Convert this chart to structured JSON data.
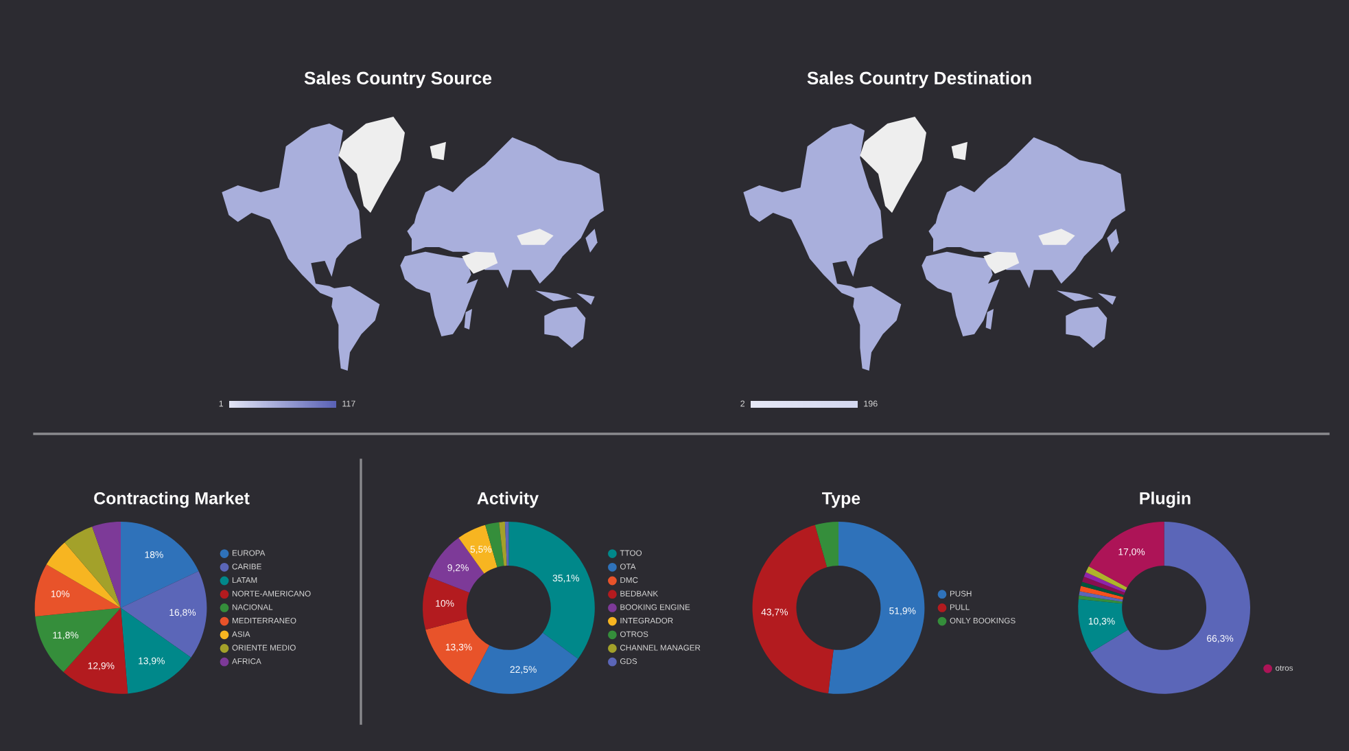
{
  "chart_data": [
    {
      "type": "other",
      "title": "Sales Country Source",
      "annotations": [
        "1",
        "117"
      ],
      "colors": [
        "#e4e6f6",
        "#5a62b6"
      ]
    },
    {
      "type": "other",
      "title": "Sales Country Destination",
      "annotations": [
        "2",
        "196"
      ],
      "colors": [
        "#e6e8f6",
        "#d4d8f0"
      ]
    },
    {
      "type": "pie",
      "title": "Contracting Market",
      "categories": [
        "EUROPA",
        "CARIBE",
        "LATAM",
        "NORTE-AMERICANO",
        "NACIONAL",
        "MEDITERRANEO",
        "ASIA",
        "ORIENTE MEDIO",
        "AFRICA"
      ],
      "values": [
        18,
        16.8,
        13.9,
        12.9,
        11.8,
        10,
        5.3,
        5.9,
        5.4
      ],
      "colors": [
        "#2f72ba",
        "#5b66b8",
        "#00888a",
        "#b31b1f",
        "#358e3b",
        "#e8532a",
        "#f7b521",
        "#a3a12a",
        "#7d3a98"
      ],
      "value_labels": [
        "18%",
        "16,8%",
        "13,9%",
        "12,9%",
        "11,8%",
        "10%",
        null,
        null,
        null
      ],
      "legend": "right"
    },
    {
      "type": "donut",
      "title": "Activity",
      "categories": [
        "TTOO",
        "OTA",
        "DMC",
        "BEDBANK",
        "BOOKING ENGINE",
        "INTEGRADOR",
        "OTROS",
        "CHANNEL MANAGER",
        "GDS"
      ],
      "values": [
        35.1,
        22.5,
        13.3,
        10,
        9.2,
        5.5,
        2.6,
        1.1,
        0.7
      ],
      "colors": [
        "#00888a",
        "#2f72ba",
        "#e8532a",
        "#b31b1f",
        "#7d3a98",
        "#f7b521",
        "#358e3b",
        "#a3a12a",
        "#5b66b8"
      ],
      "value_labels": [
        "35,1%",
        "22,5%",
        "13,3%",
        "10%",
        "9,2%",
        "5,5%",
        null,
        null,
        null
      ],
      "legend": "right"
    },
    {
      "type": "donut",
      "title": "Type",
      "categories": [
        "PUSH",
        "PULL",
        "ONLY BOOKINGS"
      ],
      "values": [
        51.9,
        43.7,
        4.4
      ],
      "colors": [
        "#2f72ba",
        "#b31b1f",
        "#358e3b"
      ],
      "value_labels": [
        "51,9%",
        "43,7%",
        null
      ],
      "legend": "right"
    },
    {
      "type": "donut",
      "title": "Plugin",
      "categories": [
        null,
        null,
        null,
        null,
        null,
        null,
        null,
        null,
        null,
        "otros"
      ],
      "values": [
        66.3,
        10.3,
        0.7,
        0.8,
        1.0,
        0.8,
        1.0,
        0.9,
        1.2,
        17.0
      ],
      "colors": [
        "#5b66b8",
        "#00888a",
        "#358e3b",
        "#5b66b8",
        "#f4511e",
        "#00543c",
        "#880e4f",
        "#8e24aa",
        "#afb42b",
        "#ad1457"
      ],
      "value_labels": [
        "66,3%",
        "10,3%",
        null,
        null,
        null,
        null,
        null,
        null,
        null,
        "17,0%"
      ],
      "legend": "right"
    }
  ]
}
